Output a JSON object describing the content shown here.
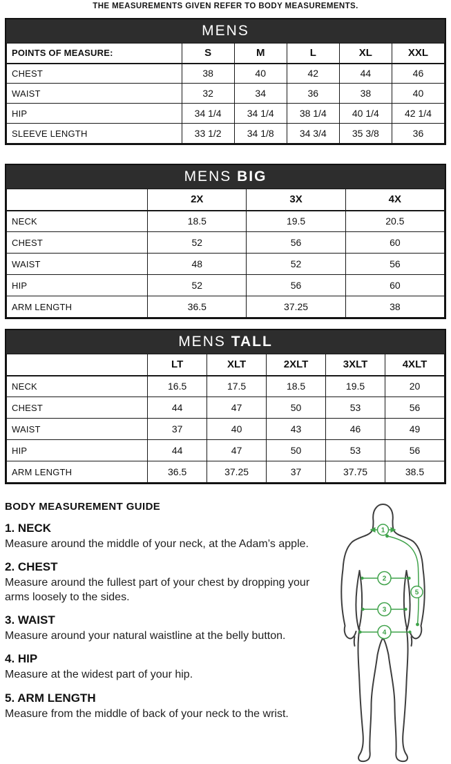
{
  "note": "THE MEASUREMENTS GIVEN REFER TO BODY MEASUREMENTS.",
  "tables": [
    {
      "title_prefix": "MENS",
      "title_suffix": "",
      "label_header": "POINTS OF MEASURE:",
      "columns": [
        "S",
        "M",
        "L",
        "XL",
        "XXL"
      ],
      "rows": [
        {
          "label": "CHEST",
          "values": [
            "38",
            "40",
            "42",
            "44",
            "46"
          ]
        },
        {
          "label": "WAIST",
          "values": [
            "32",
            "34",
            "36",
            "38",
            "40"
          ]
        },
        {
          "label": "HIP",
          "values": [
            "34 1/4",
            "34 1/4",
            "38 1/4",
            "40 1/4",
            "42 1/4"
          ]
        },
        {
          "label": "SLEEVE LENGTH",
          "values": [
            "33 1/2",
            "34 1/8",
            "34 3/4",
            "35 3/8",
            "36"
          ]
        }
      ]
    },
    {
      "title_prefix": "MENS ",
      "title_suffix": "BIG",
      "label_header": "",
      "columns": [
        "2X",
        "3X",
        "4X"
      ],
      "rows": [
        {
          "label": "NECK",
          "values": [
            "18.5",
            "19.5",
            "20.5"
          ]
        },
        {
          "label": "CHEST",
          "values": [
            "52",
            "56",
            "60"
          ]
        },
        {
          "label": "WAIST",
          "values": [
            "48",
            "52",
            "56"
          ]
        },
        {
          "label": "HIP",
          "values": [
            "52",
            "56",
            "60"
          ]
        },
        {
          "label": "ARM LENGTH",
          "values": [
            "36.5",
            "37.25",
            "38"
          ]
        }
      ]
    },
    {
      "title_prefix": "MENS ",
      "title_suffix": "TALL",
      "label_header": "",
      "columns": [
        "LT",
        "XLT",
        "2XLT",
        "3XLT",
        "4XLT"
      ],
      "rows": [
        {
          "label": "NECK",
          "values": [
            "16.5",
            "17.5",
            "18.5",
            "19.5",
            "20"
          ]
        },
        {
          "label": "CHEST",
          "values": [
            "44",
            "47",
            "50",
            "53",
            "56"
          ]
        },
        {
          "label": "WAIST",
          "values": [
            "37",
            "40",
            "43",
            "46",
            "49"
          ]
        },
        {
          "label": "HIP",
          "values": [
            "44",
            "47",
            "50",
            "53",
            "56"
          ]
        },
        {
          "label": "ARM LENGTH",
          "values": [
            "36.5",
            "37.25",
            "37",
            "37.75",
            "38.5"
          ]
        }
      ]
    }
  ],
  "guide": {
    "heading": "BODY MEASUREMENT GUIDE",
    "items": [
      {
        "title": "1. NECK",
        "text": "Measure around the middle of your neck, at the Adam’s apple."
      },
      {
        "title": "2. CHEST",
        "text": "Measure around the fullest part of your chest by dropping your arms loosely to the sides."
      },
      {
        "title": "3. WAIST",
        "text": "Measure around your natural waistline at the belly button."
      },
      {
        "title": "4. HIP",
        "text": "Measure at the widest part of your hip."
      },
      {
        "title": "5. ARM LENGTH",
        "text": "Measure from the middle of back of your neck to the wrist."
      }
    ]
  },
  "figure": {
    "markers": [
      "1",
      "2",
      "3",
      "4",
      "5"
    ],
    "line_color": "#3fa24a",
    "outline_color": "#3d3d3d"
  },
  "colors": {
    "table_header_bg": "#2d2d2d",
    "table_header_text": "#ffffff"
  }
}
